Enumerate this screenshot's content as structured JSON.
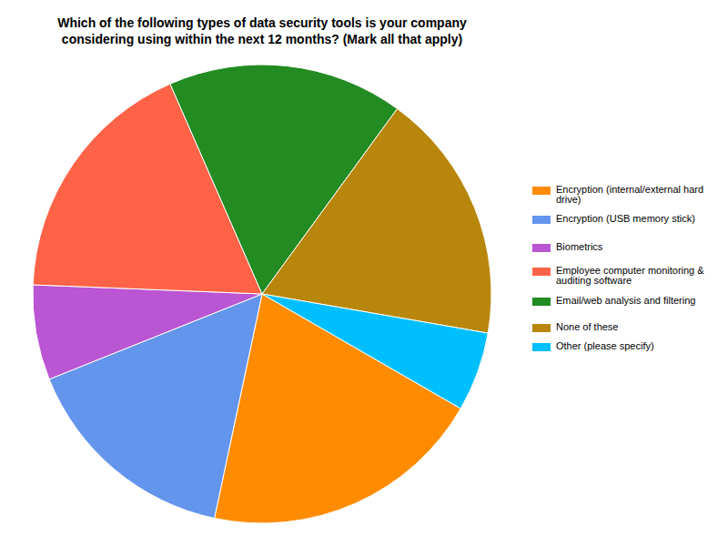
{
  "chart_data": {
    "type": "pie",
    "title": "Which of the following types of data security tools is your company considering using within the next 12 months? (Mark all that apply)",
    "categories": [
      "Encryption (internal/external hard drive)",
      "Encryption (USB memory stick)",
      "Biometrics",
      "Employee computer monitoring & auditing software",
      "Email/web analysis and filtering",
      "None of these",
      "Other (please specify)"
    ],
    "values": [
      20,
      15.6,
      6.7,
      17.8,
      16.6,
      17.7,
      5.6
    ],
    "colors": [
      "#ff8c00",
      "#6495ed",
      "#ba55d3",
      "#ff6347",
      "#228b22",
      "#b8860b",
      "#00bfff"
    ],
    "legend": "right"
  }
}
